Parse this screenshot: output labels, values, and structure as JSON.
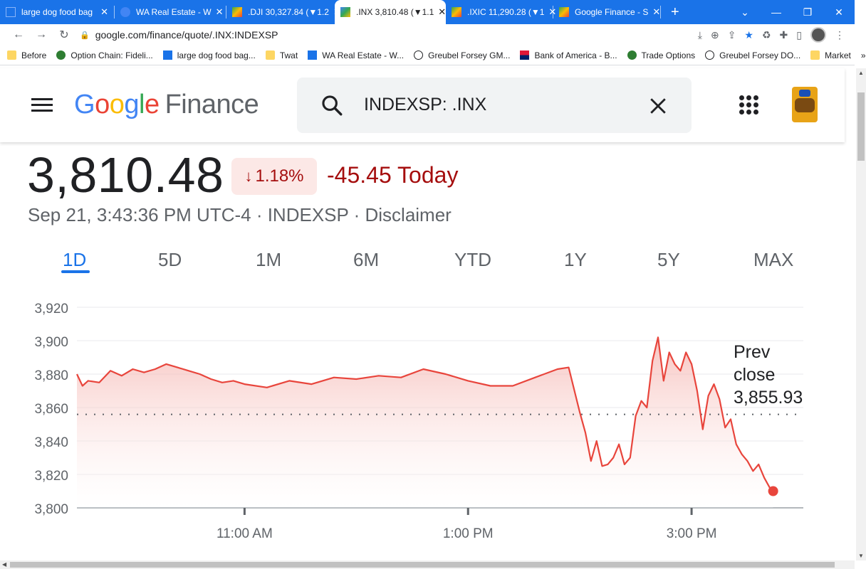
{
  "browser": {
    "tabs": [
      {
        "title": "large dog food bag",
        "active": false
      },
      {
        "title": "WA Real Estate - W",
        "active": false
      },
      {
        "title": ".DJI 30,327.84 (▼1.2",
        "active": false
      },
      {
        "title": ".INX 3,810.48 (▼1.1",
        "active": true
      },
      {
        "title": ".IXIC 11,290.28 (▼1",
        "active": false
      },
      {
        "title": "Google Finance - S",
        "active": false
      }
    ],
    "url": "google.com/finance/quote/.INX:INDEXSP",
    "bookmarks": [
      "Before",
      "Option Chain: Fideli...",
      "large dog food bag...",
      "Twat",
      "WA Real Estate - W...",
      "Greubel Forsey GM...",
      "Bank of America - B...",
      "Trade Options",
      "Greubel Forsey DO...",
      "Market"
    ],
    "more_bookmarks": "»"
  },
  "header": {
    "logo_google": "Google",
    "logo_finance": "Finance",
    "search_value": "INDEXSP: .INX"
  },
  "quote": {
    "price": "3,810.48",
    "change_pct": "1.18%",
    "change_today": "-45.45 Today",
    "meta": "Sep 21, 3:43:36 PM UTC-4 · INDEXSP · Disclaimer"
  },
  "ranges": [
    "1D",
    "5D",
    "1M",
    "6M",
    "YTD",
    "1Y",
    "5Y",
    "MAX"
  ],
  "active_range": "1D",
  "colors": {
    "accent": "#1a73e8",
    "negative": "#a50e0e",
    "line": "#e8453c"
  },
  "chart_data": {
    "type": "line",
    "y_ticks": [
      "3,920",
      "3,900",
      "3,880",
      "3,860",
      "3,840",
      "3,820",
      "3,800"
    ],
    "ylim": [
      3800,
      3920
    ],
    "x_ticks": [
      {
        "label": "11:00 AM",
        "t": 11.0
      },
      {
        "label": "1:00 PM",
        "t": 13.0
      },
      {
        "label": "3:00 PM",
        "t": 15.0
      }
    ],
    "xlim": [
      9.5,
      16.0
    ],
    "prev_close": 3855.93,
    "prev_close_label": [
      "Prev",
      "close",
      "3,855.93"
    ],
    "series": [
      {
        "x": [
          9.5,
          9.55,
          9.6,
          9.7,
          9.8,
          9.9,
          10.0,
          10.1,
          10.2,
          10.3,
          10.4,
          10.5,
          10.6,
          10.7,
          10.8,
          10.9,
          11.0,
          11.2,
          11.4,
          11.6,
          11.8,
          12.0,
          12.2,
          12.4,
          12.6,
          12.8,
          13.0,
          13.2,
          13.4,
          13.6,
          13.8,
          13.9,
          14.0,
          14.05,
          14.1,
          14.15,
          14.2,
          14.25,
          14.3,
          14.35,
          14.4,
          14.45,
          14.5,
          14.55,
          14.6,
          14.65,
          14.7,
          14.75,
          14.8,
          14.85,
          14.9,
          14.95,
          15.0,
          15.05,
          15.1,
          15.15,
          15.2,
          15.25,
          15.3,
          15.35,
          15.4,
          15.45,
          15.5,
          15.55,
          15.6,
          15.65,
          15.7,
          15.73
        ],
        "y": [
          3880,
          3873,
          3876,
          3875,
          3882,
          3879,
          3883,
          3881,
          3883,
          3886,
          3884,
          3882,
          3880,
          3877,
          3875,
          3876,
          3874,
          3872,
          3876,
          3874,
          3878,
          3877,
          3879,
          3878,
          3883,
          3880,
          3876,
          3873,
          3873,
          3878,
          3883,
          3884,
          3857,
          3845,
          3828,
          3840,
          3825,
          3826,
          3830,
          3838,
          3826,
          3830,
          3855,
          3864,
          3860,
          3888,
          3902,
          3876,
          3893,
          3886,
          3882,
          3893,
          3886,
          3870,
          3847,
          3867,
          3874,
          3865,
          3848,
          3853,
          3838,
          3832,
          3828,
          3822,
          3826,
          3818,
          3812,
          3810
        ]
      }
    ]
  }
}
